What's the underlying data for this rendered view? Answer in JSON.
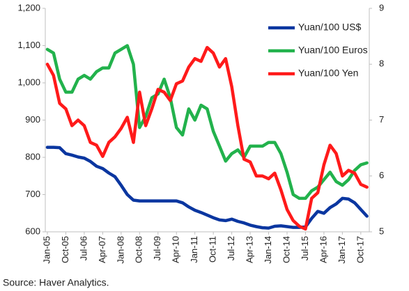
{
  "chart_data": {
    "type": "line",
    "source": "Source: Haver Analytics.",
    "categories": [
      "Jan-05",
      null,
      null,
      "Oct-05",
      null,
      null,
      "Jul-06",
      null,
      null,
      "Apr-07",
      null,
      null,
      "Jan-08",
      null,
      null,
      "Oct-08",
      null,
      null,
      "Jul-09",
      null,
      null,
      "Apr-10",
      null,
      null,
      "Jan-11",
      null,
      null,
      "Oct-11",
      null,
      null,
      "Jul-12",
      null,
      null,
      "Apr-13",
      null,
      null,
      "Jan-14",
      null,
      null,
      "Oct-14",
      null,
      null,
      "Jul-15",
      null,
      null,
      "Apr-16",
      null,
      null,
      "Jan-17",
      null,
      null,
      "Oct-17",
      null
    ],
    "ylim": [
      600,
      1200
    ],
    "yticks": [
      600,
      700,
      800,
      900,
      {
        "value": 1000,
        "label": "1,000"
      },
      {
        "value": 1100,
        "label": "1,100"
      },
      {
        "value": 1200,
        "label": "1,200"
      }
    ],
    "y2lim": [
      5,
      9
    ],
    "y2ticks": [
      5,
      6,
      7,
      8,
      9
    ],
    "legend": "upper right",
    "series": [
      {
        "name": "Yuan/100 US$",
        "color": "#0a36a0",
        "values": [
          827,
          827,
          826,
          810,
          806,
          801,
          798,
          789,
          776,
          770,
          758,
          748,
          725,
          700,
          685,
          683,
          683,
          683,
          683,
          683,
          683,
          683,
          678,
          667,
          658,
          652,
          645,
          638,
          632,
          630,
          634,
          628,
          624,
          618,
          614,
          611,
          610,
          615,
          616,
          614,
          612,
          612,
          613,
          636,
          655,
          650,
          665,
          675,
          690,
          688,
          678,
          660,
          642
        ]
      },
      {
        "name": "Yuan/100 Euros",
        "color": "#22b24c",
        "values": [
          1090,
          1080,
          1010,
          975,
          975,
          1010,
          1020,
          1010,
          1030,
          1040,
          1040,
          1080,
          1090,
          1100,
          1050,
          880,
          910,
          960,
          970,
          1010,
          960,
          880,
          860,
          930,
          900,
          940,
          930,
          870,
          830,
          790,
          810,
          820,
          800,
          830,
          830,
          830,
          840,
          840,
          810,
          760,
          700,
          690,
          690,
          710,
          720,
          740,
          760,
          735,
          725,
          740,
          765,
          780,
          785
        ]
      },
      {
        "name": "Yuan/100 Yen",
        "color": "#ff1a1a",
        "axis": "y2",
        "values": [
          8.0,
          7.8,
          7.3,
          7.2,
          6.9,
          7.0,
          6.9,
          6.6,
          6.55,
          6.35,
          6.6,
          6.7,
          6.85,
          7.05,
          6.6,
          7.5,
          6.9,
          7.2,
          7.55,
          7.5,
          7.35,
          7.65,
          7.7,
          7.95,
          8.1,
          8.05,
          8.3,
          8.2,
          7.95,
          8.1,
          7.6,
          6.9,
          6.3,
          6.25,
          6.0,
          6.0,
          5.95,
          6.05,
          5.75,
          5.4,
          5.2,
          5.1,
          5.05,
          5.6,
          5.7,
          6.2,
          6.55,
          6.4,
          6.0,
          6.1,
          6.05,
          5.85,
          5.8
        ]
      }
    ]
  }
}
